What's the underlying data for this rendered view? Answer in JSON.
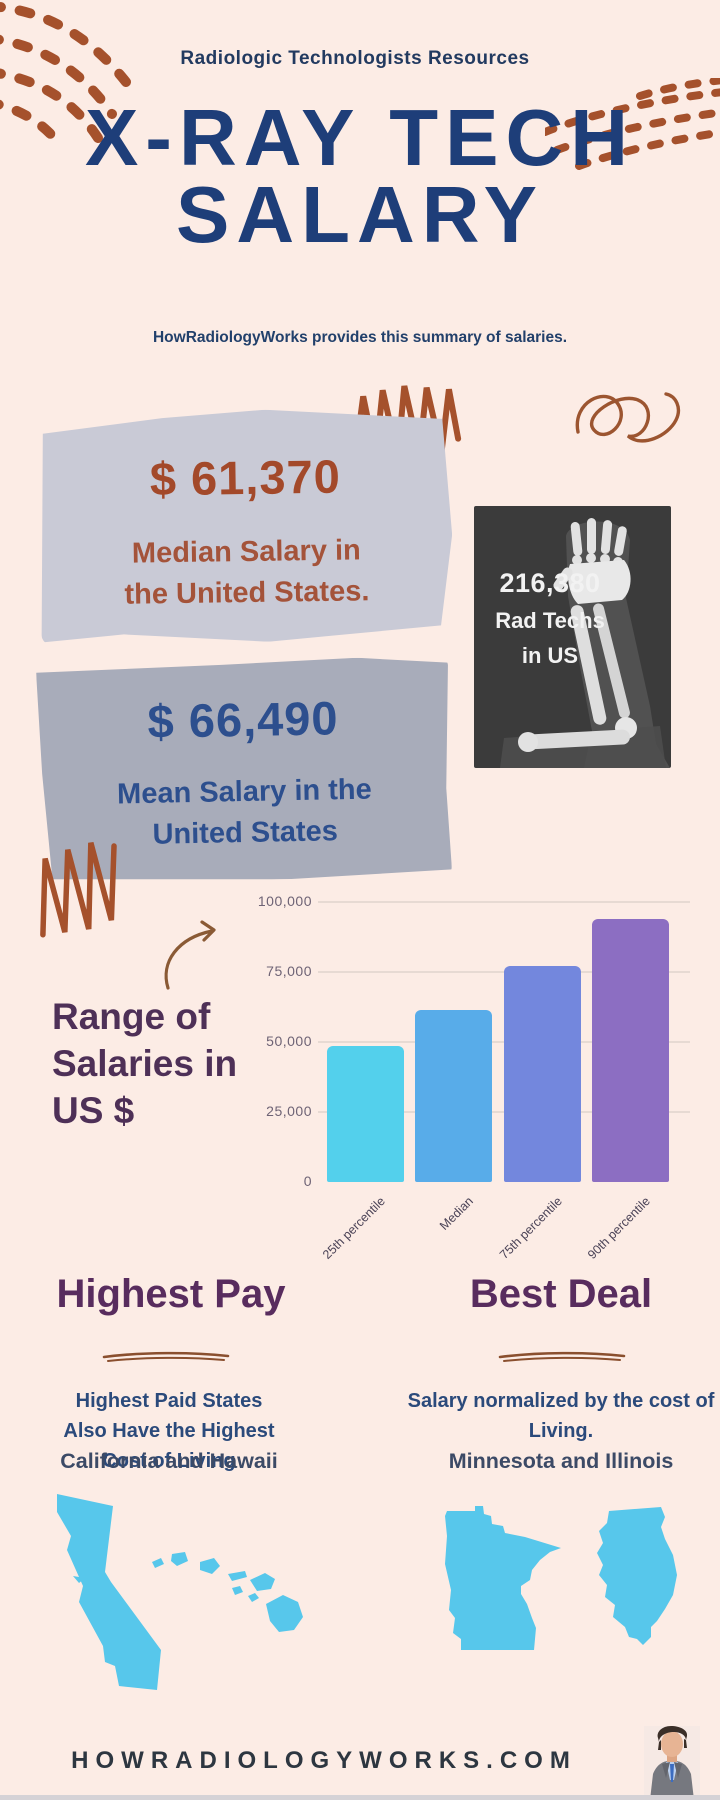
{
  "page": {
    "kicker": "Radiologic Technologists Resources",
    "title": "X-RAY TECH\nSALARY",
    "subtitle": "HowRadiologyWorks provides this summary of salaries.",
    "footer": "HOWRADIOLOGYWORKS.COM"
  },
  "stats": {
    "median": {
      "amount": "$ 61,370",
      "label": "Median Salary in\nthe United States."
    },
    "mean": {
      "amount": "$ 66,490",
      "label": "Mean Salary in the\nUnited States"
    },
    "workforce": {
      "count": "216,380",
      "line1": "Rad Techs",
      "line2": "in US"
    }
  },
  "chart_data": {
    "type": "bar",
    "title": "Range of\nSalaries in\nUS $",
    "categories": [
      "25th percentile",
      "Median",
      "75th percentile",
      "90th percentile"
    ],
    "values": [
      48500,
      61370,
      77000,
      94000
    ],
    "ylim": [
      0,
      100000
    ],
    "yticks": [
      0,
      25000,
      50000,
      75000,
      100000
    ],
    "ytick_labels": [
      "0",
      "25,000",
      "50,000",
      "75,000",
      "100,000"
    ],
    "bar_colors": [
      "#53d0ec",
      "#58ace9",
      "#7387dd",
      "#8c6ec2"
    ],
    "grid": true,
    "legend": false,
    "xlabel": "",
    "ylabel": ""
  },
  "columns": {
    "left": {
      "heading": "Highest Pay",
      "body": "Highest Paid States\nAlso Have the Highest\nCost of Living",
      "states": "California and Hawaii"
    },
    "right": {
      "heading": "Best Deal",
      "body": "Salary normalized by the cost of\nLiving.",
      "states": "Minnesota and Illinois"
    }
  },
  "colors": {
    "background": "#fcece5",
    "title_navy": "#1e3e79",
    "rust_accent": "#a5512c",
    "median_rust": "#a3492a",
    "mean_navy": "#2d4f8e",
    "purple_heading": "#582c5e",
    "map_blue": "#57c7eb",
    "xray_card_bg": "#3b3b3b"
  }
}
